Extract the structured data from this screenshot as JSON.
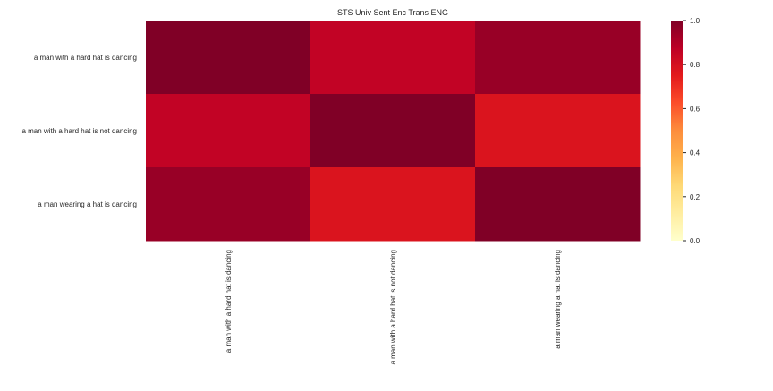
{
  "chart_data": {
    "type": "heatmap",
    "title": "STS Univ Sent Enc Trans ENG",
    "rows": [
      "a man with a hard hat is dancing",
      "a man with a hard hat is not dancing",
      "a man wearing a hat is dancing"
    ],
    "columns": [
      "a man with a hard hat is dancing",
      "a man with a hard hat is not dancing",
      "a man wearing a hat is dancing"
    ],
    "values": [
      [
        1.0,
        0.86,
        0.95
      ],
      [
        0.86,
        1.0,
        0.78
      ],
      [
        0.95,
        0.78,
        1.0
      ]
    ],
    "colorbar": {
      "range": [
        0.0,
        1.0
      ],
      "ticks": [
        "0.0",
        "0.2",
        "0.4",
        "0.6",
        "0.8",
        "1.0"
      ],
      "colormap": "YlOrRd",
      "colors": [
        "#ffffcc",
        "#ffeda0",
        "#fed976",
        "#feb24c",
        "#fd8d3c",
        "#fc4e2a",
        "#e31a1c",
        "#bd0026",
        "#800026"
      ]
    },
    "grid": false
  }
}
